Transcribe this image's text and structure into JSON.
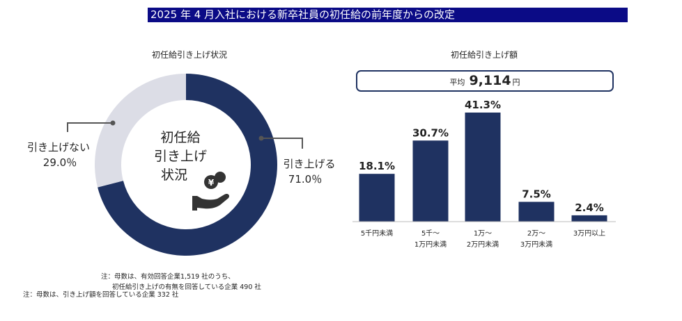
{
  "header": {
    "title": "2025 年 4 月入社における新卒社員の初任給の前年度からの改定"
  },
  "left": {
    "subtitle": "初任給引き上げ状況",
    "center_line1": "初任給",
    "center_line2": "引き上げ",
    "center_line3": "状況",
    "yen_symbol": "¥",
    "icon": "hand-with-coins-icon",
    "legend_raise_label": "引き上げる",
    "legend_raise_value": "71.0％",
    "legend_noraise_label": "引き上げない",
    "legend_noraise_value": "29.0％",
    "note_line1": "注：母数は、有効回答企業1,519 社のうち、",
    "note_line2": "初任給引き上げの有無を回答している企業 490 社"
  },
  "right": {
    "subtitle": "初任給引き上げ額",
    "avg_label": "平均",
    "avg_value": "9,114",
    "avg_unit": "円",
    "note": "注：母数は、引き上げ額を回答している企業 332 社"
  },
  "colors": {
    "navy": "#1f3261",
    "gray": "#dcdde6",
    "banner": "#0b0b86"
  },
  "chart_data": [
    {
      "type": "pie",
      "title": "初任給引き上げ状況",
      "labels": [
        "引き上げる",
        "引き上げない"
      ],
      "values": [
        71.0,
        29.0
      ],
      "value_labels": [
        "71.0％",
        "29.0％"
      ],
      "colors": [
        "#1f3261",
        "#dcdde6"
      ]
    },
    {
      "type": "bar",
      "title": "初任給引き上げ額",
      "categories": [
        [
          "5千円未満"
        ],
        [
          "5千～",
          "1万円未満"
        ],
        [
          "1万～",
          "2万円未満"
        ],
        [
          "2万～",
          "3万円未満"
        ],
        [
          "3万円以上"
        ]
      ],
      "values": [
        18.1,
        30.7,
        41.3,
        7.5,
        2.4
      ],
      "value_labels": [
        "18.1%",
        "30.7%",
        "41.3%",
        "7.5%",
        "2.4%"
      ],
      "color": "#1f3261"
    }
  ]
}
